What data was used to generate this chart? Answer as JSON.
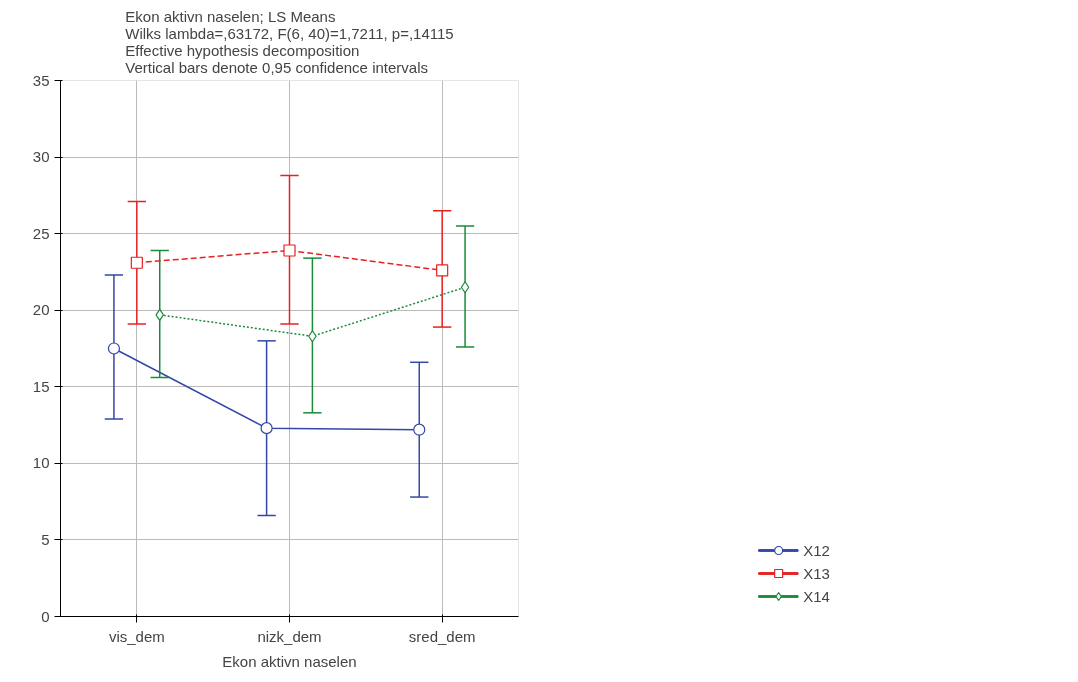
{
  "chart_data": {
    "type": "line",
    "title": "Ekon aktivn naselen; LS Means",
    "subtitle": "Wilks lambda=,63172, F(6, 40)=1,7211, p=,14115\nEffective hypothesis decomposition\nVertical bars denote 0,95 confidence intervals",
    "xlabel": "Ekon aktivn naselen",
    "categories": [
      "vis_dem",
      "nizk_dem",
      "sred_dem"
    ],
    "series": [
      {
        "name": "X12",
        "color": "#3347a8",
        "marker": "circle",
        "line_style": "solid",
        "values": [
          17.5,
          12.3,
          12.2
        ],
        "errors": [
          [
            12.9,
            22.3
          ],
          [
            6.6,
            18.0
          ],
          [
            7.8,
            16.6
          ]
        ]
      },
      {
        "name": "X13",
        "color": "#e82020",
        "marker": "square",
        "line_style": "dashed",
        "values": [
          23.1,
          23.9,
          22.6
        ],
        "errors": [
          [
            19.1,
            27.1
          ],
          [
            19.1,
            28.8
          ],
          [
            18.9,
            26.5
          ]
        ]
      },
      {
        "name": "X14",
        "color": "#1a8a3a",
        "marker": "diamond",
        "line_style": "dotted",
        "values": [
          19.7,
          18.3,
          21.5
        ],
        "errors": [
          [
            15.6,
            23.9
          ],
          [
            13.3,
            23.4
          ],
          [
            17.6,
            25.5
          ]
        ]
      }
    ],
    "ylim": [
      0,
      35
    ],
    "yticks": [
      0,
      5,
      10,
      15,
      20,
      25,
      30,
      35
    ],
    "grid": true,
    "legend": "bottom right"
  }
}
